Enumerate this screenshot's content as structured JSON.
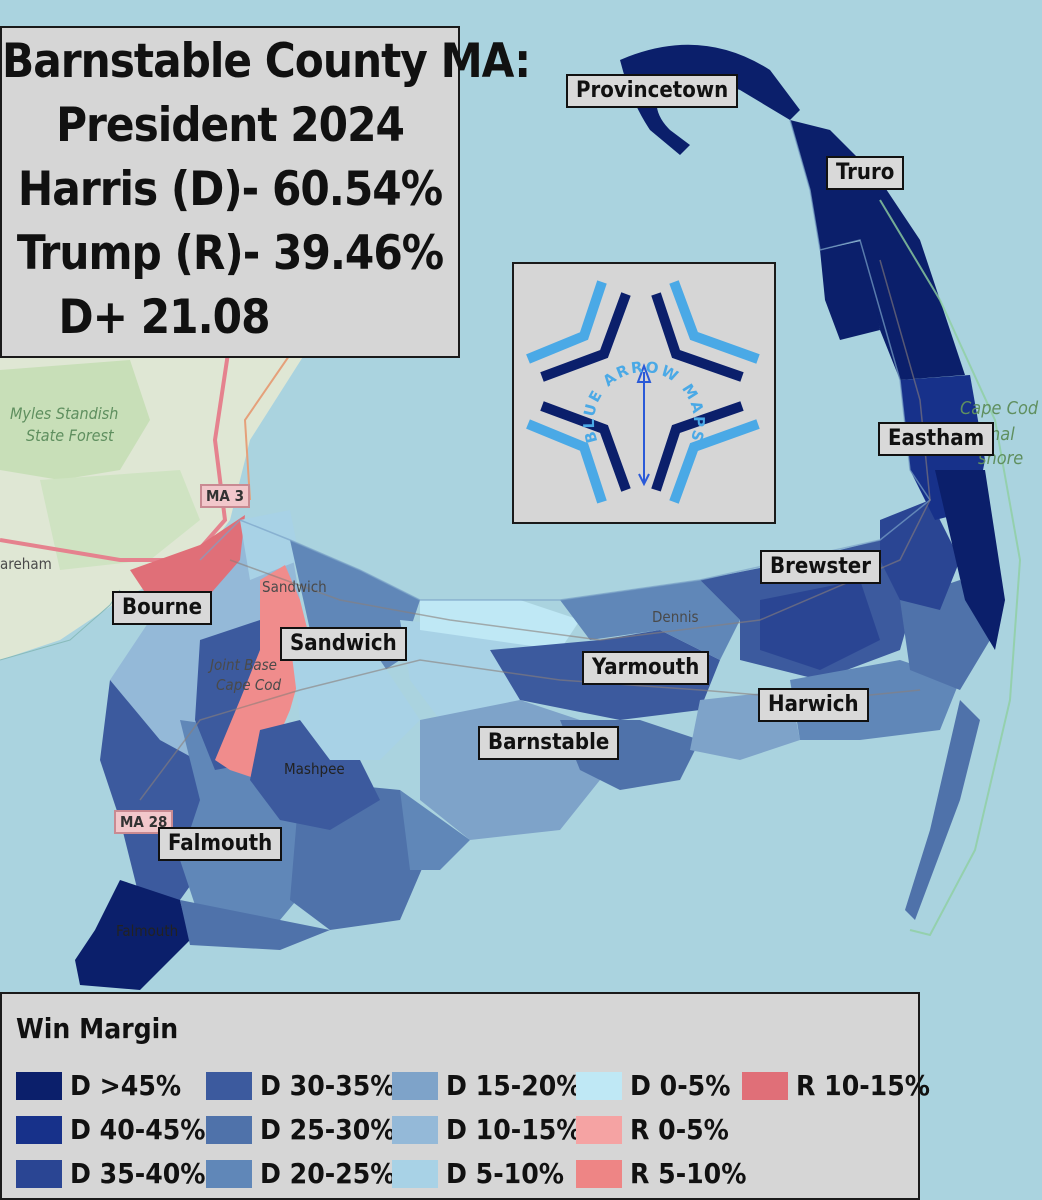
{
  "title": {
    "lines": [
      "Barnstable County MA:",
      "President 2024",
      "Harris (D)- 60.54%",
      "Trump (R)- 39.46%",
      "D+ 21.08"
    ]
  },
  "logo": {
    "ring_text": "BLUE ARROW MAPS"
  },
  "towns": [
    "Provincetown",
    "Truro",
    "Eastham",
    "Brewster",
    "Bourne",
    "Sandwich",
    "Yarmouth",
    "Harwich",
    "Barnstable",
    "Falmouth"
  ],
  "basemap_labels": {
    "forest": [
      "Myles Standish",
      "State Forest"
    ],
    "seashore": [
      "Cape Cod",
      "nal",
      "shore"
    ],
    "places": [
      "Sandwich",
      "Dennis",
      "Joint Base",
      "Cape Cod",
      "Mashpee",
      "Falmouth",
      "areham",
      "n"
    ],
    "shields": [
      "MA 3",
      "MA 28"
    ]
  },
  "legend": {
    "title": "Win Margin",
    "items": [
      {
        "label": "D >45%",
        "color": "#0b1f6b"
      },
      {
        "label": "D 40-45%",
        "color": "#17318a"
      },
      {
        "label": "D 35-40%",
        "color": "#2a4593"
      },
      {
        "label": "D 30-35%",
        "color": "#3c5a9e"
      },
      {
        "label": "D 25-30%",
        "color": "#4f72aa"
      },
      {
        "label": "D 20-25%",
        "color": "#6087b8"
      },
      {
        "label": "D 15-20%",
        "color": "#7ea3c9"
      },
      {
        "label": "D 10-15%",
        "color": "#94b9d8"
      },
      {
        "label": "D 5-10%",
        "color": "#a8d2e6"
      },
      {
        "label": "D 0-5%",
        "color": "#bfe8f5"
      },
      {
        "label": "R 0-5%",
        "color": "#f5a3a3"
      },
      {
        "label": "R 5-10%",
        "color": "#ee8585"
      },
      {
        "label": "R 10-15%",
        "color": "#e06f78"
      }
    ]
  }
}
